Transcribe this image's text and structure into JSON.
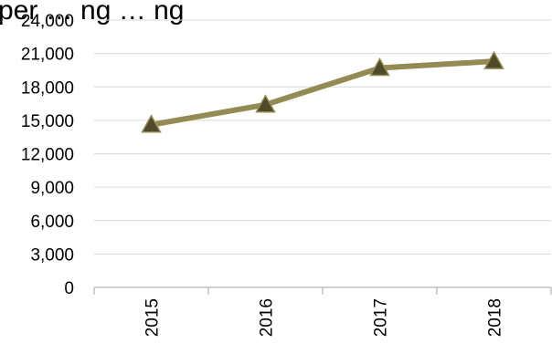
{
  "chart_data": {
    "type": "line",
    "title": "per … ng … ng",
    "categories": [
      "2015",
      "2016",
      "2017",
      "2018"
    ],
    "y_tick_labels": [
      "0",
      "3,000",
      "6,000",
      "9,000",
      "12,000",
      "15,000",
      "18,000",
      "21,000",
      "24,000"
    ],
    "ylim": [
      0,
      24000
    ],
    "grid": true,
    "legend": "none",
    "series": [
      {
        "values": [
          14600,
          16400,
          19700,
          20300
        ],
        "color": "#948A54",
        "marker": "triangle",
        "marker_color": "#4F4B2A"
      }
    ]
  }
}
